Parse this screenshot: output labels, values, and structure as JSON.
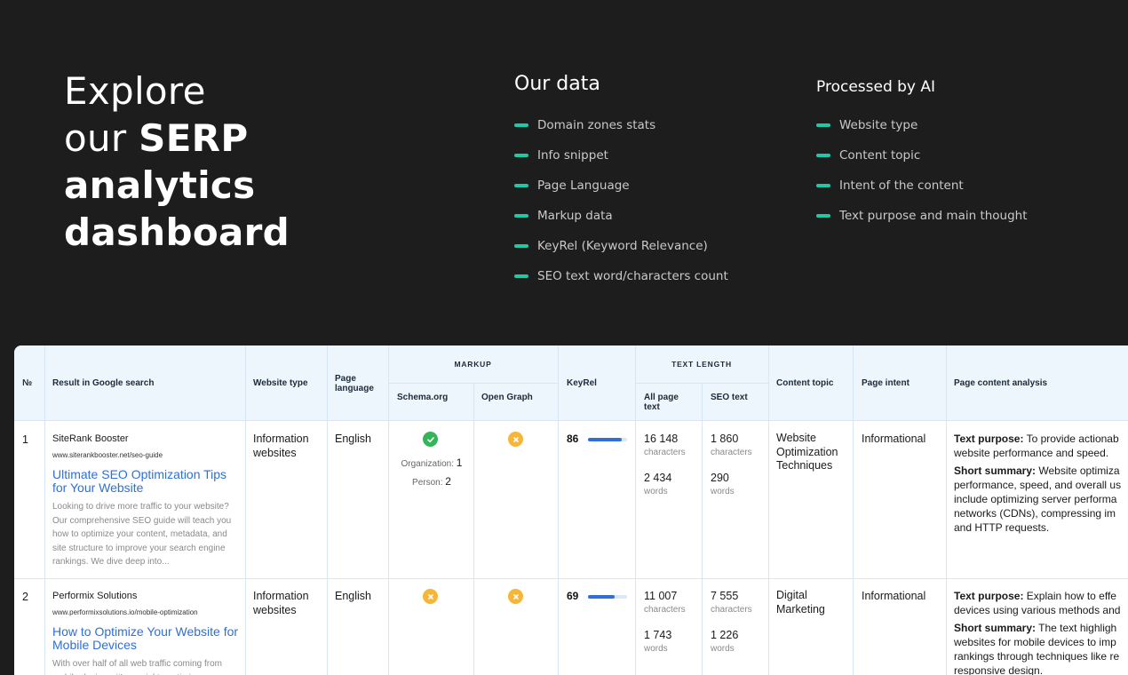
{
  "hero": {
    "line1": "Explore",
    "line2_light": "our ",
    "line2_bold": "SERP",
    "line3": "analytics",
    "line4": "dashboard"
  },
  "our_data": {
    "title": "Our data",
    "items": [
      "Domain zones stats",
      "Info snippet",
      "Page Language",
      "Markup data",
      "KeyRel (Keyword Relevance)",
      "SEO text word/characters count"
    ]
  },
  "processed": {
    "title": "Processed by AI",
    "items": [
      "Website type",
      "Content topic",
      "Intent of the content",
      "Text purpose and main thought"
    ]
  },
  "colors": {
    "accent": "#1ec9a5",
    "link": "#2f6fd7",
    "ok": "#35b45a",
    "no": "#f5b63a"
  },
  "table": {
    "headers": {
      "no": "№",
      "result": "Result in Google search",
      "website_type": "Website type",
      "page_language": "Page language",
      "markup": "MARKUP",
      "schema": "Schema.org",
      "open_graph": "Open Graph",
      "keyrel": "KeyRel",
      "text_length": "TEXT LENGTH",
      "all_page_text": "All page text",
      "seo_text": "SEO text",
      "content_topic": "Content topic",
      "page_intent": "Page intent",
      "analysis": "Page content analysis"
    },
    "rows": [
      {
        "no": "1",
        "site": "SiteRank Booster",
        "url": "www.siterankbooster.net/seo-guide",
        "title": "Ultimate SEO Optimization Tips for Your Website",
        "snippet": "Looking to drive more traffic to your website? Our comprehensive SEO guide will teach you how to optimize your content, metadata, and site structure to improve your search engine rankings. We dive deep into...",
        "website_type": "Information websites",
        "language": "English",
        "schema_icon": "check-icon",
        "schema_org_label": "Organization:",
        "schema_org_count": "1",
        "schema_person_label": "Person:",
        "schema_person_count": "2",
        "og_icon": "cross-icon",
        "keyrel": 86,
        "all_chars": "16 148",
        "all_chars_unit": "characters",
        "all_words": "2 434",
        "all_words_unit": "words",
        "seo_chars": "1 860",
        "seo_chars_unit": "characters",
        "seo_words": "290",
        "seo_words_unit": "words",
        "topic": "Website Optimization Techniques",
        "intent": "Informational",
        "purpose_label": "Text purpose:",
        "purpose": "To provide actionab",
        "purpose2": "website performance and speed.",
        "summary_label": "Short summary:",
        "summary": "Website optimiza",
        "summary_lines": [
          "performance, speed, and overall us",
          "include optimizing server performa",
          "networks (CDNs), compressing im",
          "and HTTP requests."
        ]
      },
      {
        "no": "2",
        "site": "Performix Solutions",
        "url": "www.performixsolutions.io/mobile-optimization",
        "title": "How to Optimize Your Website for Mobile Devices",
        "snippet": "With over half of all web traffic coming from mobile devices, it's crucial to optimize your",
        "website_type": "Information websites",
        "language": "English",
        "schema_icon": "cross-icon",
        "og_icon": "cross-icon",
        "keyrel": 69,
        "all_chars": "11 007",
        "all_chars_unit": "characters",
        "all_words": "1 743",
        "all_words_unit": "words",
        "seo_chars": "7 555",
        "seo_chars_unit": "characters",
        "seo_words": "1 226",
        "seo_words_unit": "words",
        "topic": "Digital Marketing",
        "intent": "Informational",
        "purpose_label": "Text purpose:",
        "purpose": "Explain how to effe",
        "purpose2": "devices using various methods and",
        "summary_label": "Short summary:",
        "summary": "The text highligh",
        "summary_lines": [
          "websites for mobile devices to imp",
          "rankings through techniques like re",
          "responsive design."
        ]
      }
    ]
  }
}
